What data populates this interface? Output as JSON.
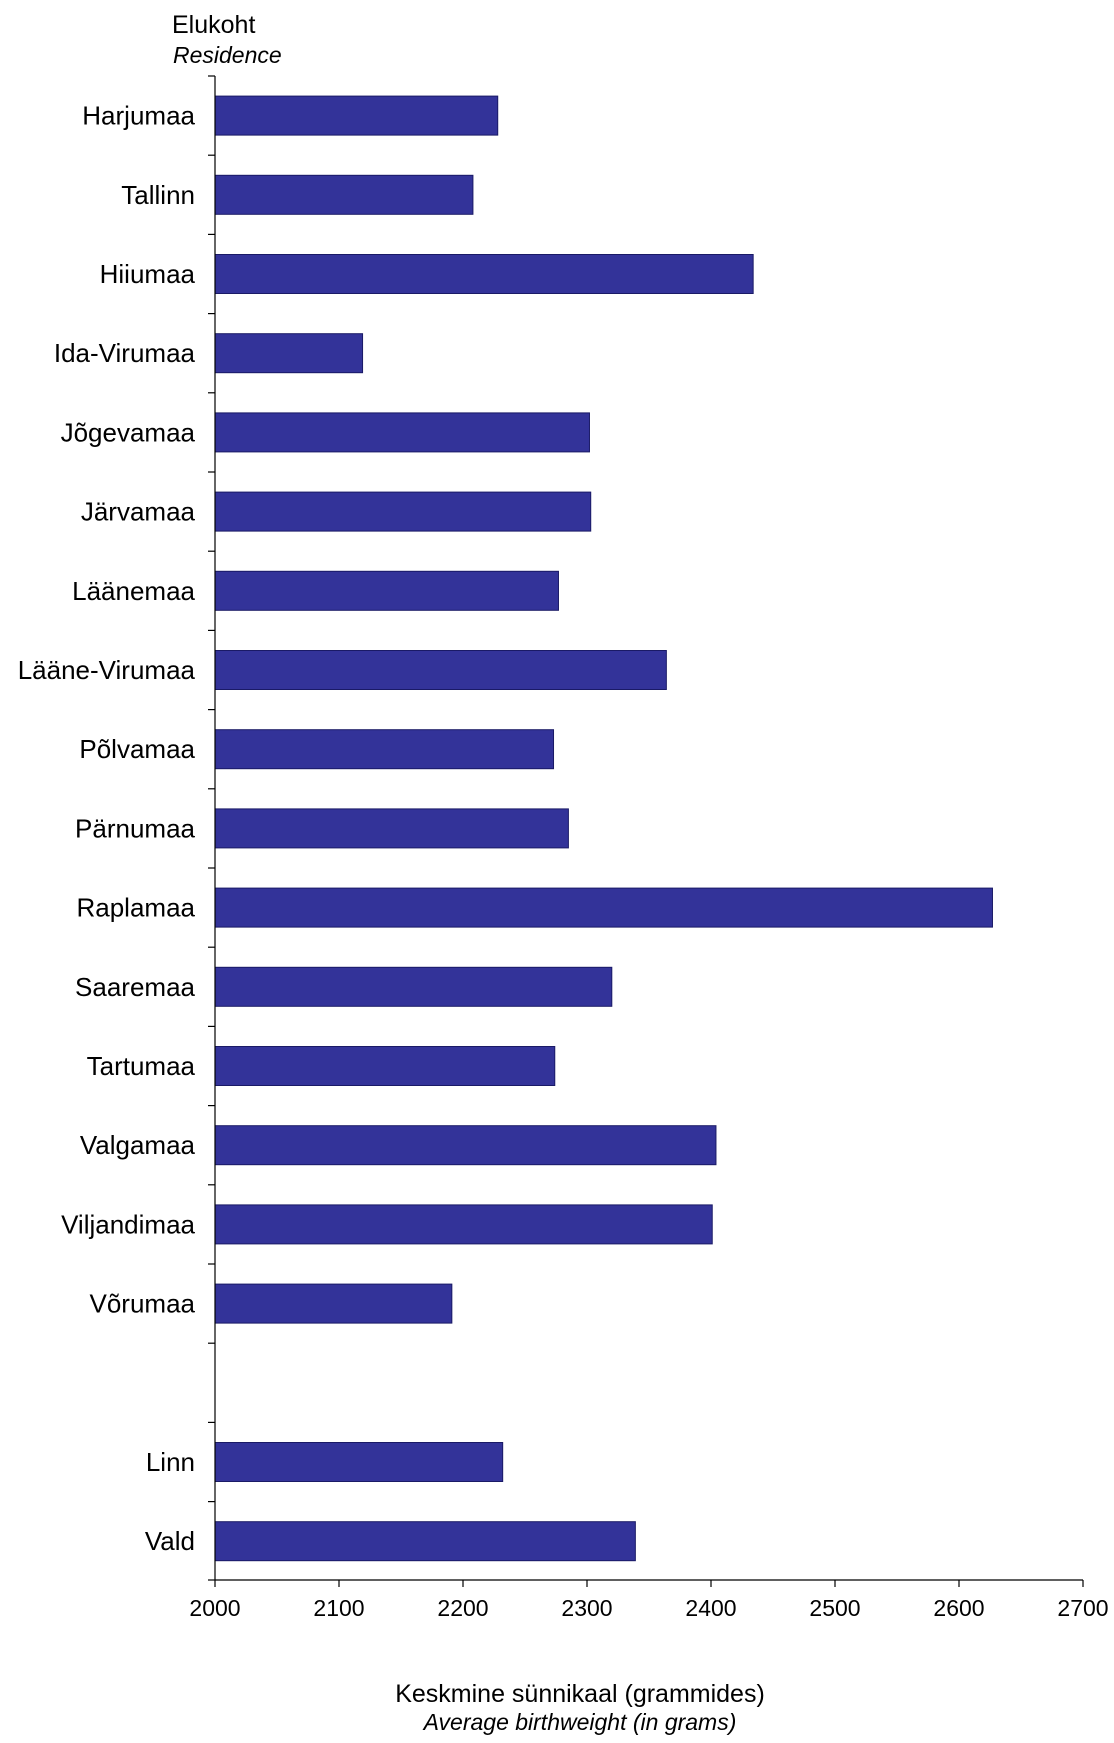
{
  "chart_data": {
    "type": "bar",
    "orientation": "horizontal",
    "y_axis_title": "Elukoht",
    "y_axis_title_en": "Residence",
    "xlabel": "Keskmine sünnikaal (grammides)",
    "xlabel_en": "Average birthweight (in grams)",
    "xlim": [
      2000,
      2700
    ],
    "x_ticks": [
      "2000",
      "2100",
      "2200",
      "2300",
      "2400",
      "2500",
      "2600",
      "2700"
    ],
    "grid": false,
    "bar_color": "#333399",
    "groups": [
      {
        "categories": [
          "Harjumaa",
          "Tallinn",
          "Hiiumaa",
          "Ida-Virumaa",
          "Jõgevamaa",
          "Järvamaa",
          "Läänemaa",
          "Lääne-Virumaa",
          "Põlvamaa",
          "Pärnumaa",
          "Raplamaa",
          "Saaremaa",
          "Tartumaa",
          "Valgamaa",
          "Viljandimaa",
          "Võrumaa"
        ],
        "values": [
          2228,
          2208,
          2434,
          2119,
          2302,
          2303,
          2277,
          2364,
          2273,
          2285,
          2627,
          2320,
          2274,
          2404,
          2401,
          2191
        ]
      },
      {
        "categories": [
          "Linn",
          "Vald"
        ],
        "values": [
          2232,
          2339
        ]
      }
    ]
  }
}
